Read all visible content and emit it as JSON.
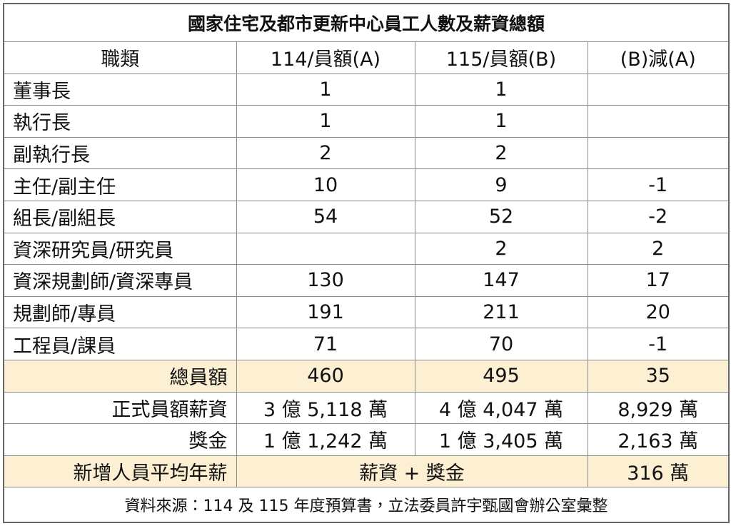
{
  "title": "國家住宅及都市更新中心員工人數及薪資總額",
  "table": {
    "header": [
      "職類",
      "114/員額(A)",
      "115/員額(B)",
      "(B)減(A)"
    ],
    "rows": [
      [
        "董事長",
        1,
        1,
        null
      ],
      [
        "執行長",
        1,
        1,
        null
      ],
      [
        "副執行長",
        2,
        2,
        null
      ],
      [
        "主任/副主任",
        10,
        9,
        -1
      ],
      [
        "組長/副組長",
        54,
        52,
        -2
      ],
      [
        "資深研究員/研究員",
        null,
        2,
        2
      ],
      [
        "資深規劃師/資深專員",
        130,
        147,
        17
      ],
      [
        "規劃師/專員",
        191,
        211,
        20
      ],
      [
        "工程員/課員",
        71,
        70,
        -1
      ]
    ],
    "total": [
      "總員額",
      460,
      495,
      35
    ],
    "salary": [
      "正式員額薪資",
      "3 億 5,118 萬",
      "4 億 4,047 萬",
      "8,929 萬"
    ],
    "bonus": [
      "獎金",
      "1 億 1,242 萬",
      "1 億 3,405 萬",
      "2,163 萬"
    ],
    "average": {
      "label": "新增人員平均年薪",
      "formula": "薪資 + 獎金",
      "value": "316 萬"
    }
  },
  "source": "資料來源：114 及 115 年度預算書，立法委員許宇甄國會辦公室彙整"
}
